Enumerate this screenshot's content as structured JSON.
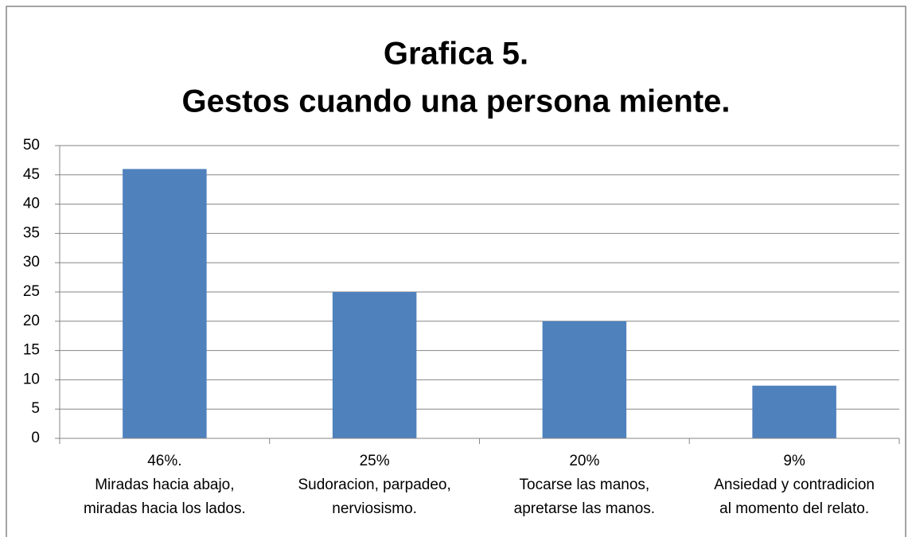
{
  "chart_data": {
    "type": "bar",
    "title": [
      "Grafica 5.",
      "Gestos cuando una persona miente."
    ],
    "categories": [
      [
        "46%.",
        "Miradas hacia abajo,",
        "miradas hacia los lados."
      ],
      [
        "25%",
        "Sudoracion, parpadeo,",
        "nerviosismo."
      ],
      [
        "20%",
        "Tocarse las manos,",
        "apretarse las manos."
      ],
      [
        "9%",
        "Ansiedad y contradicion",
        "al momento del relato."
      ]
    ],
    "values": [
      46,
      25,
      20,
      9
    ],
    "color": "#4f81bd",
    "ylim": [
      0,
      50
    ],
    "yticks": [
      0,
      5,
      10,
      15,
      20,
      25,
      30,
      35,
      40,
      45,
      50
    ],
    "grid": true
  }
}
